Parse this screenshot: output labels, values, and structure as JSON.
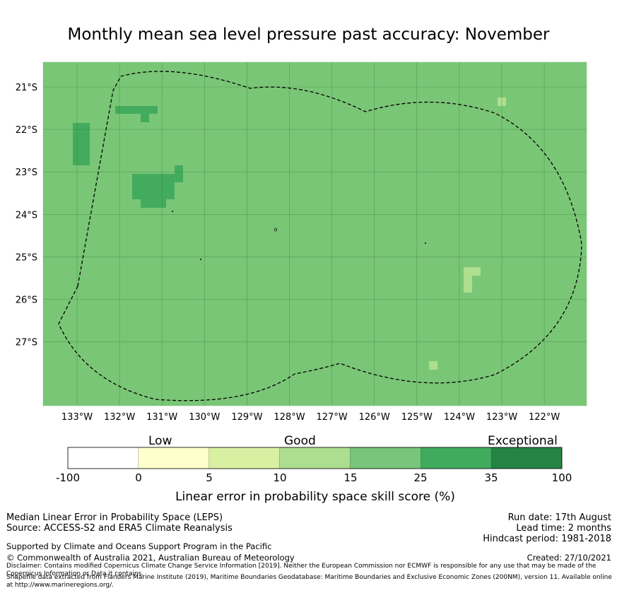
{
  "title": "Monthly mean sea level pressure past accuracy: November",
  "map": {
    "y_ticks": [
      "21°S",
      "22°S",
      "23°S",
      "24°S",
      "25°S",
      "26°S",
      "27°S"
    ],
    "x_ticks": [
      "133°W",
      "132°W",
      "131°W",
      "130°W",
      "129°W",
      "128°W",
      "127°W",
      "126°W",
      "125°W",
      "124°W",
      "123°W",
      "122°W"
    ],
    "colors": {
      "background": "#7ac677",
      "good_plus": "#43ab5e",
      "good": "#addf8e",
      "boundary": "#000000"
    }
  },
  "colorbar": {
    "categories": [
      "Low",
      "Good",
      "Exceptional"
    ],
    "tick_labels": [
      "-100",
      "0",
      "5",
      "10",
      "15",
      "25",
      "35",
      "100"
    ],
    "colors": [
      "#ffffff",
      "#ffffcc",
      "#d9f0a3",
      "#addd8e",
      "#78c679",
      "#41ab5d",
      "#238443"
    ],
    "label": "Linear error in probability space skill score (%)"
  },
  "footer": {
    "left_line1": "Median Linear Error in Probability Space (LEPS)",
    "left_line2": "Source: ACCESS-S2 and ERA5 Climate Reanalysis",
    "right_line1": "Run date: 17th August",
    "right_line2": "Lead time: 2 months",
    "right_line3": "Hindcast period: 1981-2018",
    "supported": "Supported by Climate and Oceans Support Program in the Pacific",
    "copyright": "© Commonwealth of Australia 2021, Australian Bureau of Meteorology",
    "created": "Created: 27/10/2021",
    "disclaimer": "Disclaimer: Contains modified Copernicus Climate Change Service Information [2019]. Neither the European Commission nor ECMWF is responsible for any use that may be made of the Copernicus Information or Data it contains.",
    "shapefile": "Shapefile data extracted from Flanders Marine Institute (2019), Maritime Boundaries Geodatabase: Maritime Boundaries and Exclusive Economic Zones (200NM), version 11. Available online at http://www.marineregions.org/."
  }
}
